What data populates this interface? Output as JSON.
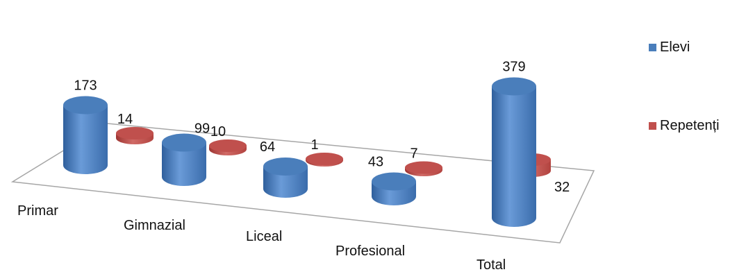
{
  "chart_data": {
    "type": "bar",
    "categories": [
      "Primar",
      "Gimnazial",
      "Liceal",
      "Profesional",
      "Total"
    ],
    "series": [
      {
        "name": "Elevi",
        "values": [
          173,
          99,
          64,
          43,
          379
        ]
      },
      {
        "name": "Repetenți",
        "values": [
          14,
          10,
          1,
          7,
          32
        ]
      }
    ],
    "title": "",
    "xlabel": "",
    "ylabel": "",
    "legend": "right",
    "grid": false,
    "data_labels": true
  },
  "colors": {
    "Elevi": "#4a7ebb",
    "Repetenți": "#c0504d"
  },
  "legend": {
    "items": [
      {
        "label": "Elevi"
      },
      {
        "label": "Repetenți"
      }
    ]
  }
}
